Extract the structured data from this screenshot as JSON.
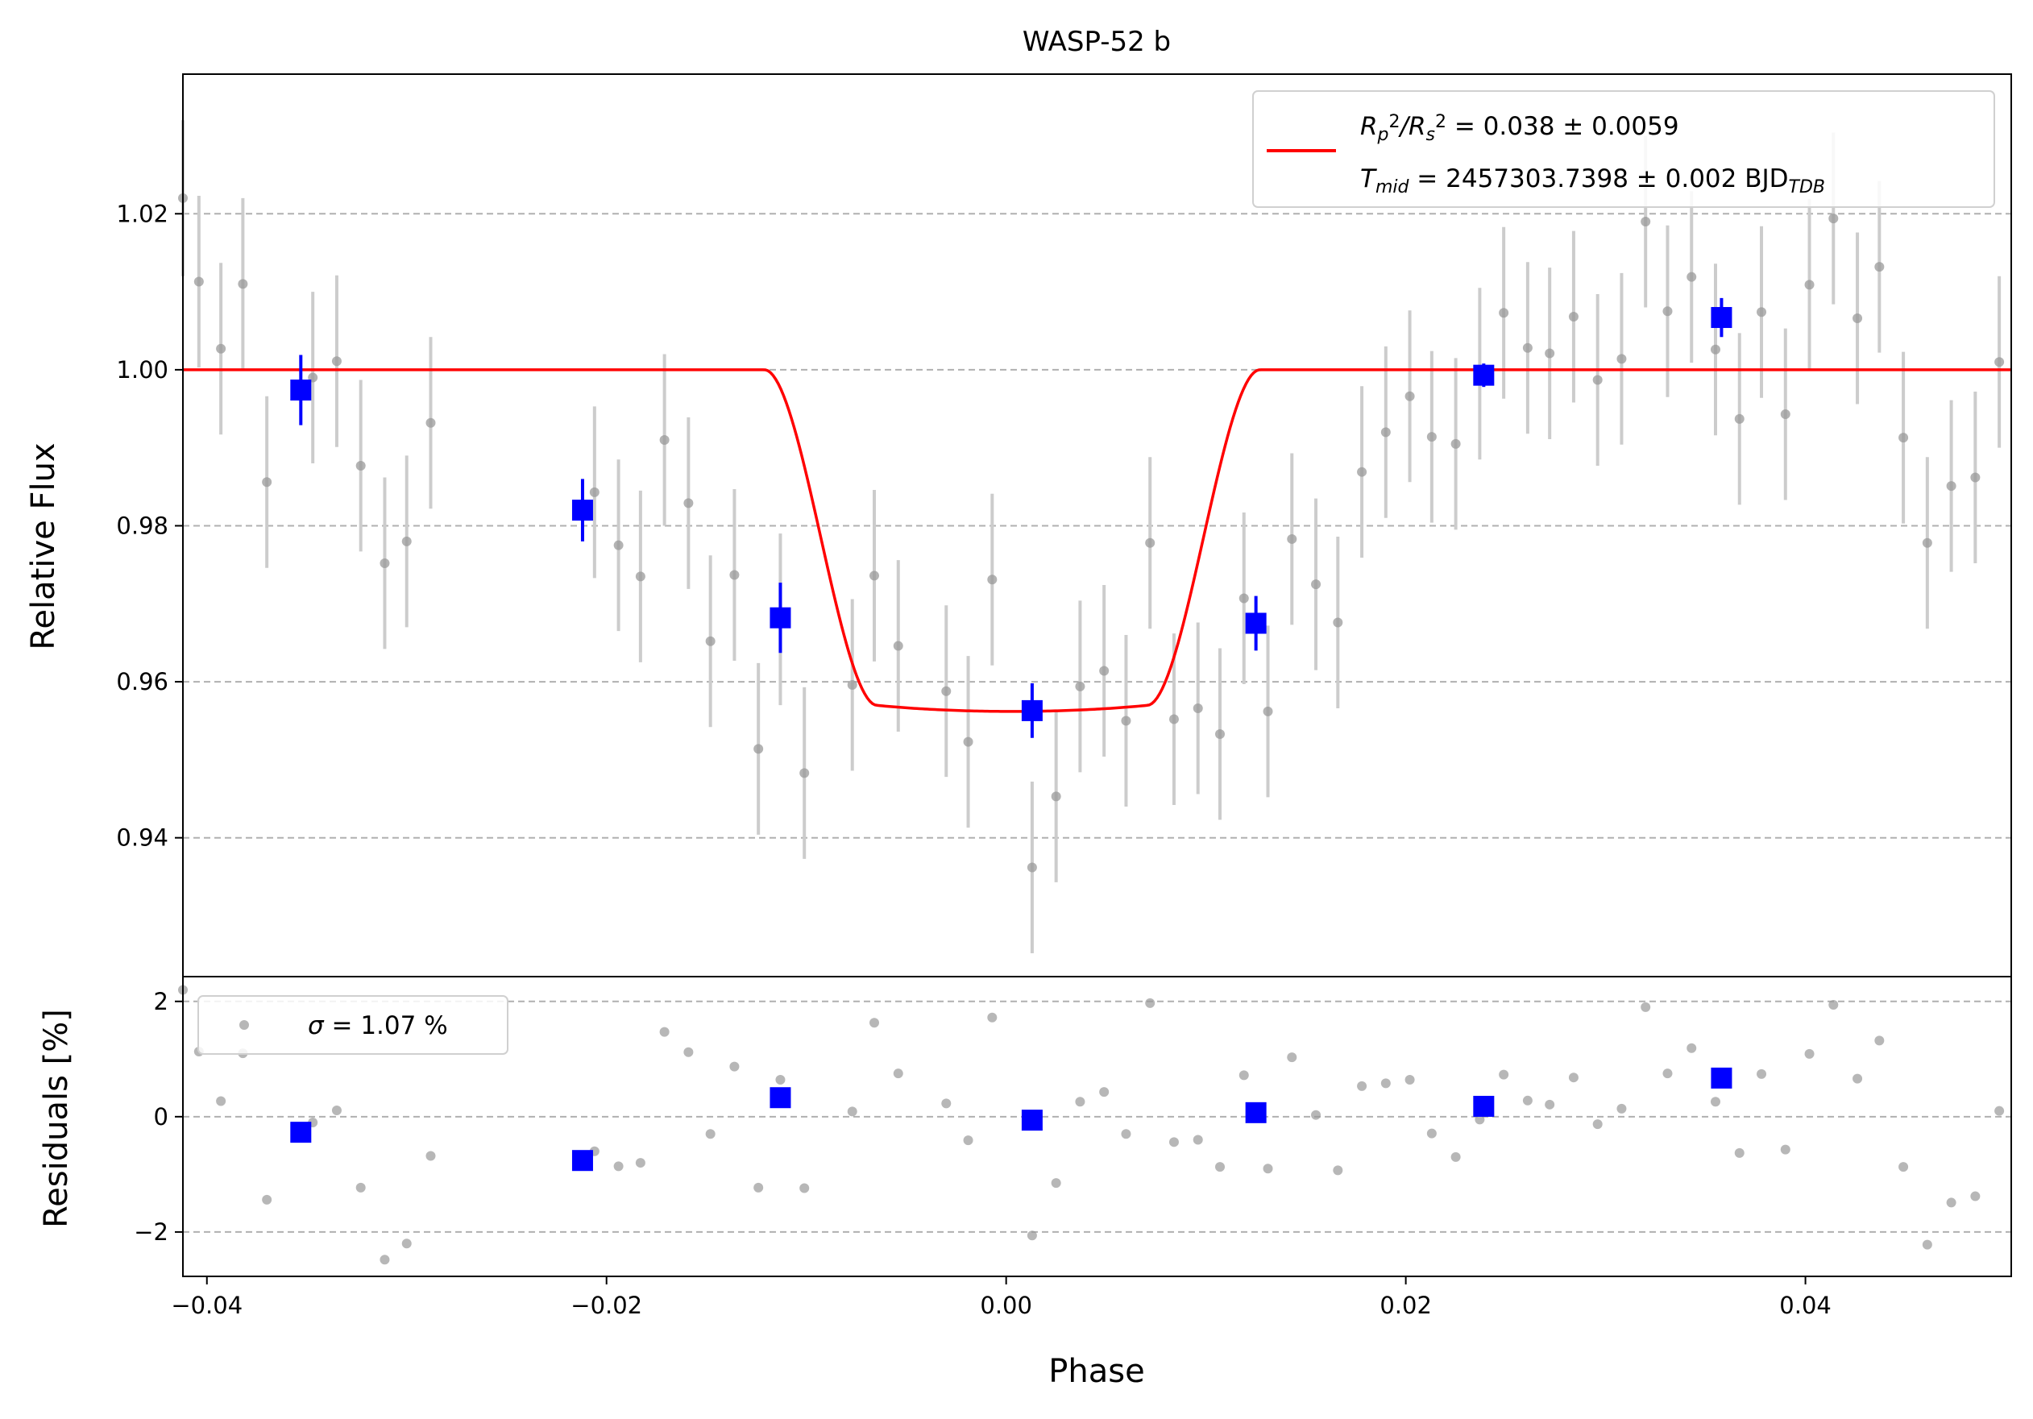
{
  "chart_data": {
    "type": "scatter",
    "title": "WASP-52 b",
    "xlabel": "Phase",
    "xlim": [
      -0.0412,
      0.0503
    ],
    "x_ticks": [
      -0.04,
      -0.02,
      0.0,
      0.02,
      0.04
    ],
    "x_tick_labels": [
      "−0.04",
      "−0.02",
      "0.00",
      "0.02",
      "0.04"
    ],
    "colors": {
      "raw": "#999999",
      "raw_err": "#cccccc",
      "binned": "#0000ff",
      "model": "#ff0000",
      "grid": "#b0b0b0"
    },
    "top": {
      "ylabel": "Relative Flux",
      "ylim": [
        0.9222,
        1.0379
      ],
      "y_ticks": [
        0.94,
        0.96,
        0.98,
        1.0,
        1.02
      ],
      "y_tick_labels": [
        "0.94",
        "0.96",
        "0.98",
        "1.00",
        "1.02"
      ],
      "legend": {
        "placement": "upper-right",
        "line1": {
          "parts": [
            {
              "t": "R",
              "s": "i"
            },
            {
              "t": "p",
              "s": "sub-i"
            },
            {
              "t": "2",
              "s": "sup"
            },
            {
              "t": "/",
              "s": "i"
            },
            {
              "t": "R",
              "s": "i"
            },
            {
              "t": "s",
              "s": "sub-i"
            },
            {
              "t": "2",
              "s": "sup"
            },
            {
              "t": " = 0.038 ± 0.0059",
              "s": "n"
            }
          ]
        },
        "line2": {
          "parts": [
            {
              "t": "T",
              "s": "i"
            },
            {
              "t": "mid",
              "s": "sub-i"
            },
            {
              "t": " = 2457303.7398 ± 0.002 BJD",
              "s": "n"
            },
            {
              "t": "TDB",
              "s": "sub-i"
            }
          ]
        }
      },
      "model": {
        "depth": 0.0438,
        "t14": 0.0248,
        "t23": 0.0135,
        "center": 0.0003
      },
      "raw": [
        [
          -0.0412,
          1.022,
          0.01
        ],
        [
          -0.0404,
          1.0113,
          0.011
        ],
        [
          -0.0393,
          1.0027,
          0.011
        ],
        [
          -0.0382,
          1.011,
          0.011
        ],
        [
          -0.037,
          0.9856,
          0.011
        ],
        [
          -0.0347,
          0.999,
          0.011
        ],
        [
          -0.0335,
          1.0011,
          0.011
        ],
        [
          -0.0323,
          0.9877,
          0.011
        ],
        [
          -0.0311,
          0.9752,
          0.011
        ],
        [
          -0.03,
          0.978,
          0.011
        ],
        [
          -0.0288,
          0.9932,
          0.011
        ],
        [
          -0.0206,
          0.9843,
          0.011
        ],
        [
          -0.0194,
          0.9775,
          0.011
        ],
        [
          -0.0183,
          0.9735,
          0.011
        ],
        [
          -0.0171,
          0.991,
          0.011
        ],
        [
          -0.0159,
          0.9829,
          0.011
        ],
        [
          -0.0148,
          0.9652,
          0.011
        ],
        [
          -0.0136,
          0.9737,
          0.011
        ],
        [
          -0.0124,
          0.9514,
          0.011
        ],
        [
          -0.0113,
          0.968,
          0.011
        ],
        [
          -0.0101,
          0.9483,
          0.011
        ],
        [
          -0.0077,
          0.9596,
          0.011
        ],
        [
          -0.0066,
          0.9736,
          0.011
        ],
        [
          -0.0054,
          0.9646,
          0.011
        ],
        [
          -0.003,
          0.9588,
          0.011
        ],
        [
          -0.0019,
          0.9523,
          0.011
        ],
        [
          -0.0007,
          0.9731,
          0.011
        ],
        [
          0.0013,
          0.9362,
          0.011
        ],
        [
          0.0025,
          0.9453,
          0.011
        ],
        [
          0.0037,
          0.9594,
          0.011
        ],
        [
          0.0049,
          0.9614,
          0.011
        ],
        [
          0.006,
          0.955,
          0.011
        ],
        [
          0.0072,
          0.9778,
          0.011
        ],
        [
          0.0084,
          0.9552,
          0.011
        ],
        [
          0.0096,
          0.9566,
          0.011
        ],
        [
          0.0107,
          0.9533,
          0.011
        ],
        [
          0.0119,
          0.9707,
          0.011
        ],
        [
          0.0131,
          0.9562,
          0.011
        ],
        [
          0.0143,
          0.9783,
          0.011
        ],
        [
          0.0155,
          0.9725,
          0.011
        ],
        [
          0.0166,
          0.9676,
          0.011
        ],
        [
          0.0178,
          0.9869,
          0.011
        ],
        [
          0.019,
          0.992,
          0.011
        ],
        [
          0.0202,
          0.9966,
          0.011
        ],
        [
          0.0213,
          0.9914,
          0.011
        ],
        [
          0.0225,
          0.9905,
          0.011
        ],
        [
          0.0237,
          0.9995,
          0.011
        ],
        [
          0.0249,
          1.0073,
          0.011
        ],
        [
          0.0261,
          1.0028,
          0.011
        ],
        [
          0.0272,
          1.0021,
          0.011
        ],
        [
          0.0284,
          1.0068,
          0.011
        ],
        [
          0.0296,
          0.9987,
          0.011
        ],
        [
          0.0308,
          1.0014,
          0.011
        ],
        [
          0.032,
          1.019,
          0.011
        ],
        [
          0.0331,
          1.0075,
          0.011
        ],
        [
          0.0343,
          1.0119,
          0.011
        ],
        [
          0.0355,
          1.0026,
          0.011
        ],
        [
          0.0367,
          0.9937,
          0.011
        ],
        [
          0.0378,
          1.0074,
          0.011
        ],
        [
          0.039,
          0.9943,
          0.011
        ],
        [
          0.0402,
          1.0109,
          0.011
        ],
        [
          0.0414,
          1.0194,
          0.011
        ],
        [
          0.0426,
          1.0066,
          0.011
        ],
        [
          0.0437,
          1.0132,
          0.011
        ],
        [
          0.0449,
          0.9913,
          0.011
        ],
        [
          0.0461,
          0.9778,
          0.011
        ],
        [
          0.0473,
          0.9851,
          0.011
        ],
        [
          0.0485,
          0.9862,
          0.011
        ],
        [
          0.0497,
          1.001,
          0.011
        ]
      ],
      "binned": [
        [
          -0.0353,
          0.9974,
          0.0045
        ],
        [
          -0.0212,
          0.982,
          0.004
        ],
        [
          -0.0113,
          0.9682,
          0.0045
        ],
        [
          0.0013,
          0.9563,
          0.0035
        ],
        [
          0.0125,
          0.9675,
          0.0035
        ],
        [
          0.0239,
          0.9993,
          0.0015
        ],
        [
          0.0358,
          1.0067,
          0.0025
        ]
      ]
    },
    "bottom": {
      "ylabel": "Residuals [%]",
      "ylim": [
        -2.77,
        2.43
      ],
      "y_ticks": [
        -2,
        0,
        2
      ],
      "y_tick_labels": [
        "−2",
        "0",
        "2"
      ],
      "legend": {
        "placement": "upper-left",
        "parts": [
          {
            "t": "σ",
            "s": "i"
          },
          {
            "t": " = 1.07 %",
            "s": "n"
          }
        ]
      },
      "raw": [
        [
          -0.0412,
          2.2
        ],
        [
          -0.0404,
          1.13
        ],
        [
          -0.0393,
          0.27
        ],
        [
          -0.0382,
          1.1
        ],
        [
          -0.037,
          -1.44
        ],
        [
          -0.0347,
          -0.1
        ],
        [
          -0.0335,
          0.11
        ],
        [
          -0.0323,
          -1.23
        ],
        [
          -0.0311,
          -2.48
        ],
        [
          -0.03,
          -2.2
        ],
        [
          -0.0288,
          -0.68
        ],
        [
          -0.0206,
          -0.6
        ],
        [
          -0.0194,
          -0.86
        ],
        [
          -0.0183,
          -0.8
        ],
        [
          -0.0171,
          1.47
        ],
        [
          -0.0159,
          1.12
        ],
        [
          -0.0148,
          -0.3
        ],
        [
          -0.0136,
          0.87
        ],
        [
          -0.0124,
          -1.23
        ],
        [
          -0.0113,
          0.64
        ],
        [
          -0.0101,
          -1.24
        ],
        [
          -0.0077,
          0.09
        ],
        [
          -0.0066,
          1.63
        ],
        [
          -0.0054,
          0.75
        ],
        [
          -0.003,
          0.23
        ],
        [
          -0.0019,
          -0.41
        ],
        [
          -0.0007,
          1.72
        ],
        [
          0.0013,
          -2.06
        ],
        [
          0.0025,
          -1.15
        ],
        [
          0.0037,
          0.26
        ],
        [
          0.0049,
          0.43
        ],
        [
          0.006,
          -0.3
        ],
        [
          0.0072,
          1.97
        ],
        [
          0.0084,
          -0.44
        ],
        [
          0.0096,
          -0.4
        ],
        [
          0.0107,
          -0.87
        ],
        [
          0.0119,
          0.72
        ],
        [
          0.0131,
          -0.9
        ],
        [
          0.0143,
          1.03
        ],
        [
          0.0155,
          0.03
        ],
        [
          0.0166,
          -0.93
        ],
        [
          0.0178,
          0.53
        ],
        [
          0.019,
          0.58
        ],
        [
          0.0202,
          0.64
        ],
        [
          0.0213,
          -0.29
        ],
        [
          0.0225,
          -0.7
        ],
        [
          0.0237,
          -0.05
        ],
        [
          0.0249,
          0.73
        ],
        [
          0.0261,
          0.28
        ],
        [
          0.0272,
          0.21
        ],
        [
          0.0284,
          0.68
        ],
        [
          0.0296,
          -0.13
        ],
        [
          0.0308,
          0.14
        ],
        [
          0.032,
          1.9
        ],
        [
          0.0331,
          0.75
        ],
        [
          0.0343,
          1.19
        ],
        [
          0.0355,
          0.26
        ],
        [
          0.0367,
          -0.63
        ],
        [
          0.0378,
          0.74
        ],
        [
          0.039,
          -0.57
        ],
        [
          0.0402,
          1.09
        ],
        [
          0.0414,
          1.94
        ],
        [
          0.0426,
          0.66
        ],
        [
          0.0437,
          1.32
        ],
        [
          0.0449,
          -0.87
        ],
        [
          0.0461,
          -2.22
        ],
        [
          0.0473,
          -1.49
        ],
        [
          0.0485,
          -1.38
        ],
        [
          0.0497,
          0.1
        ]
      ],
      "binned": [
        [
          -0.0353,
          -0.27
        ],
        [
          -0.0212,
          -0.76
        ],
        [
          -0.0113,
          0.33
        ],
        [
          0.0013,
          -0.06
        ],
        [
          0.0125,
          0.07
        ],
        [
          0.0239,
          0.18
        ],
        [
          0.0358,
          0.67
        ]
      ]
    }
  }
}
